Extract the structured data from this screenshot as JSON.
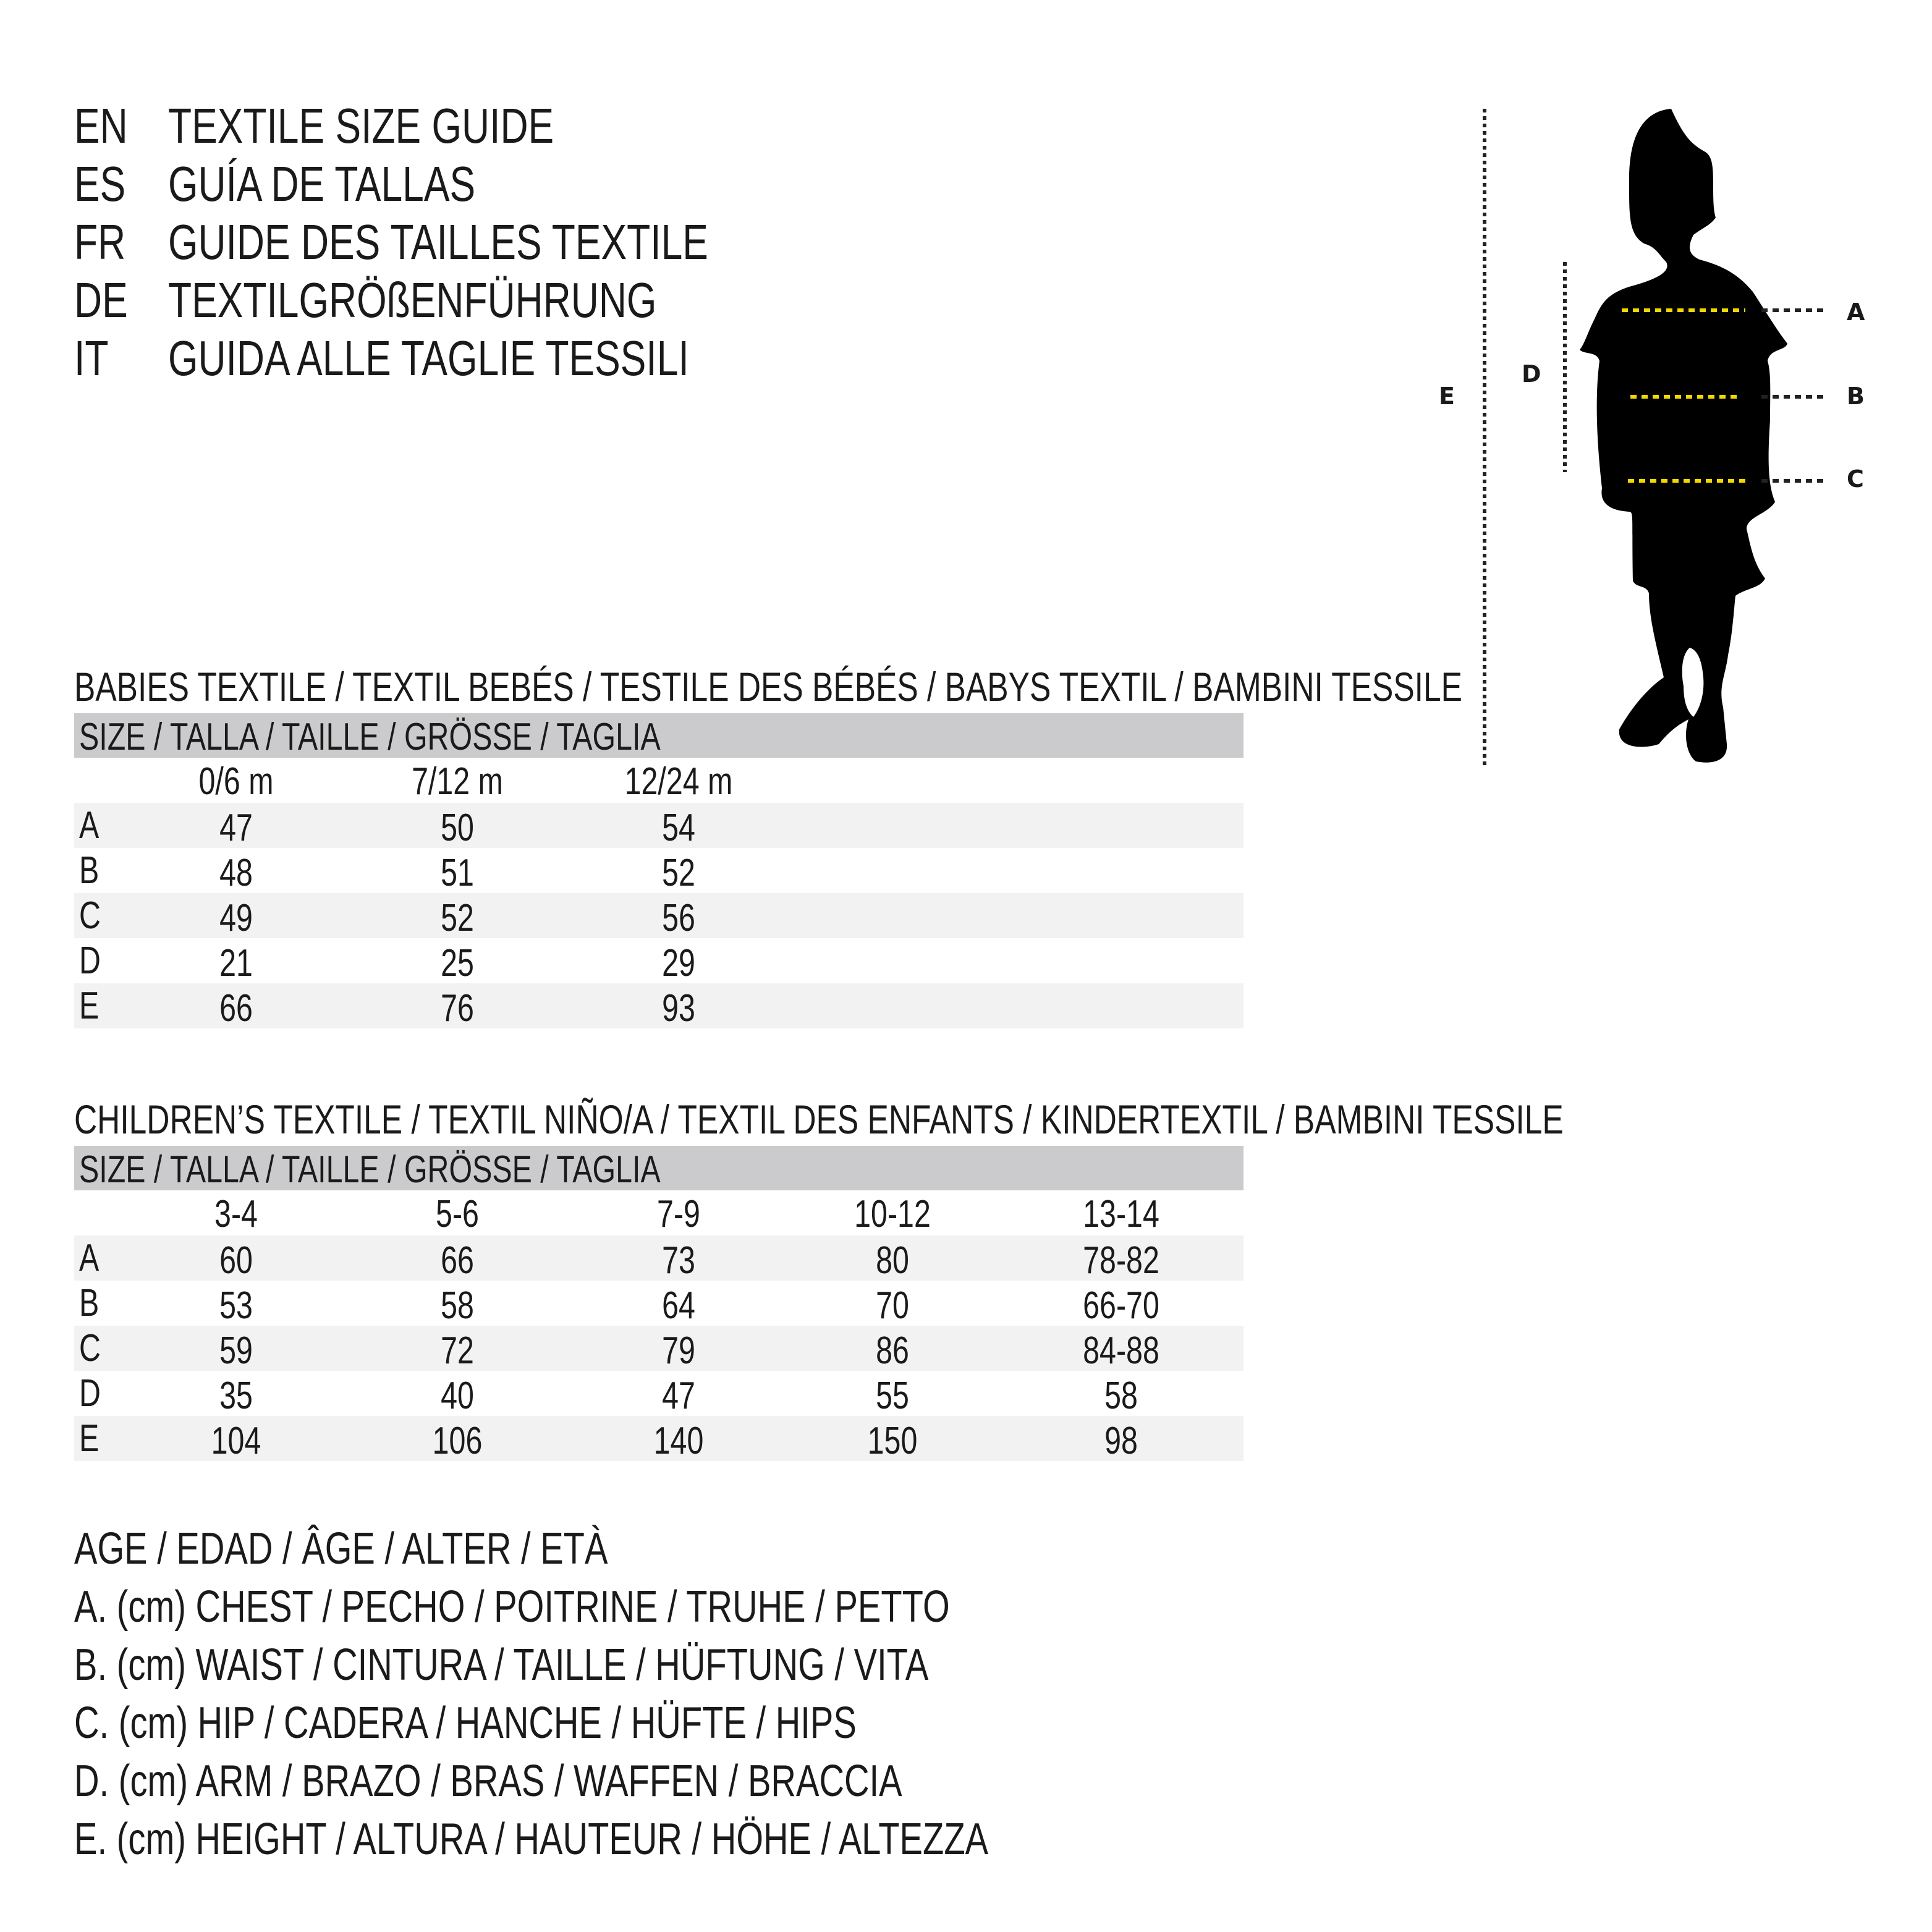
{
  "titles": [
    {
      "code": "EN",
      "text": "TEXTILE SIZE GUIDE"
    },
    {
      "code": "ES",
      "text": "GUÍA DE TALLAS"
    },
    {
      "code": "FR",
      "text": "GUIDE DES TAILLES TEXTILE"
    },
    {
      "code": "DE",
      "text": "TEXTILGRÖßENFÜHRUNG"
    },
    {
      "code": "IT",
      "text": "GUIDA ALLE TAGLIE TESSILI"
    }
  ],
  "babies": {
    "heading": "BABIES TEXTILE / TEXTIL BEBÉS / TESTILE DES BÉBÉS / BABYS TEXTIL / BAMBINI TESSILE",
    "size_header": "SIZE / TALLA / TAILLE / GRÖSSE / TAGLIA",
    "columns": [
      "0/6 m",
      "7/12 m",
      "12/24 m"
    ],
    "rows": [
      {
        "label": "A",
        "values": [
          "47",
          "50",
          "54"
        ]
      },
      {
        "label": "B",
        "values": [
          "48",
          "51",
          "52"
        ]
      },
      {
        "label": "C",
        "values": [
          "49",
          "52",
          "56"
        ]
      },
      {
        "label": "D",
        "values": [
          "21",
          "25",
          "29"
        ]
      },
      {
        "label": "E",
        "values": [
          "66",
          "76",
          "93"
        ]
      }
    ]
  },
  "children": {
    "heading": "CHILDREN’S TEXTILE / TEXTIL NIÑO/A / TEXTIL DES ENFANTS / KINDERTEXTIL / BAMBINI TESSILE",
    "size_header": "SIZE / TALLA / TAILLE / GRÖSSE / TAGLIA",
    "columns": [
      "3-4",
      "5-6",
      "7-9",
      "10-12",
      "13-14"
    ],
    "rows": [
      {
        "label": "A",
        "values": [
          "60",
          "66",
          "73",
          "80",
          "78-82"
        ]
      },
      {
        "label": "B",
        "values": [
          "53",
          "58",
          "64",
          "70",
          "66-70"
        ]
      },
      {
        "label": "C",
        "values": [
          "59",
          "72",
          "79",
          "86",
          "84-88"
        ]
      },
      {
        "label": "D",
        "values": [
          "35",
          "40",
          "47",
          "55",
          "58"
        ]
      },
      {
        "label": "E",
        "values": [
          "104",
          "106",
          "140",
          "150",
          "98"
        ]
      }
    ]
  },
  "legend": [
    "AGE / EDAD / ÂGE / ALTER / ETÀ",
    "A. (cm) CHEST / PECHO / POITRINE / TRUHE / PETTO",
    "B. (cm) WAIST / CINTURA / TAILLE / HÜFTUNG / VITA",
    "C. (cm) HIP / CADERA / HANCHE / HÜFTE / HIPS",
    "D. (cm) ARM / BRAZO / BRAS / WAFFEN / BRACCIA",
    "E. (cm) HEIGHT / ALTURA / HAUTEUR / HÖHE / ALTEZZA"
  ],
  "figure": {
    "icon": "child-silhouette-icon",
    "labels": {
      "A": "A",
      "B": "B",
      "C": "C",
      "D": "D",
      "E": "E"
    },
    "measure_line_color": "#f0d800",
    "guide_line_color": "#222222"
  }
}
